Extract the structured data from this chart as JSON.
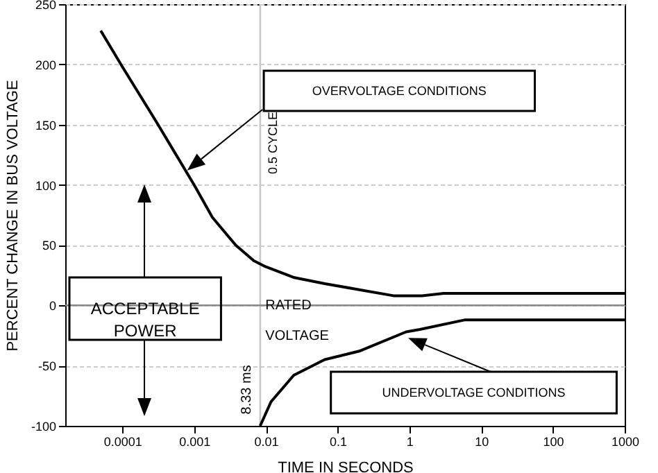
{
  "chart_data": {
    "type": "line",
    "xlabel": "TIME IN SECONDS",
    "ylabel": "PERCENT CHANGE IN BUS VOLTAGE",
    "log": "x",
    "grid": "y",
    "marker": "none",
    "line_style": "solid",
    "xlim": [
      1.6e-05,
      1000
    ],
    "xticks": [
      0.0001,
      0.001,
      0.01,
      0.1,
      1,
      10,
      100,
      1000
    ],
    "ylim": [
      -100,
      250
    ],
    "yticks": [
      -100,
      -50,
      0,
      50,
      100,
      150,
      200,
      250
    ],
    "series": [
      {
        "color": "#000000",
        "x": [
          5e-05,
          0.0001,
          0.0003,
          0.001,
          0.0018,
          0.0038,
          0.0068,
          0.01,
          0.025,
          0.066,
          0.2,
          0.6,
          1.5,
          3,
          1000
        ],
        "values": [
          228,
          198,
          152,
          100,
          73,
          50,
          37,
          32,
          23,
          18,
          13,
          8,
          8,
          10,
          10
        ]
      },
      {
        "color": "#000000",
        "x": [
          0.00833,
          0.0118,
          0.0245,
          0.066,
          0.2,
          0.9,
          1.4,
          6,
          1000
        ],
        "values": [
          -100,
          -80,
          -58,
          -45,
          -38,
          -22,
          -20,
          -12,
          -12
        ]
      }
    ],
    "ref_lines": [
      {
        "axis": "x",
        "value": 0.00833,
        "label": "0.5 CYCLE",
        "color": "#c8c8c8"
      },
      {
        "axis": "y",
        "value": 0,
        "label": "RATED VOLTAGE",
        "color": "#888888"
      }
    ],
    "annotations": [
      "OVERVOLTAGE CONDITIONS",
      "UNDERVOLTAGE CONDITIONS",
      "ACCEPTABLE POWER",
      {
        "text": "8.33 ms",
        "x": 0.00833,
        "y": -70
      }
    ]
  }
}
